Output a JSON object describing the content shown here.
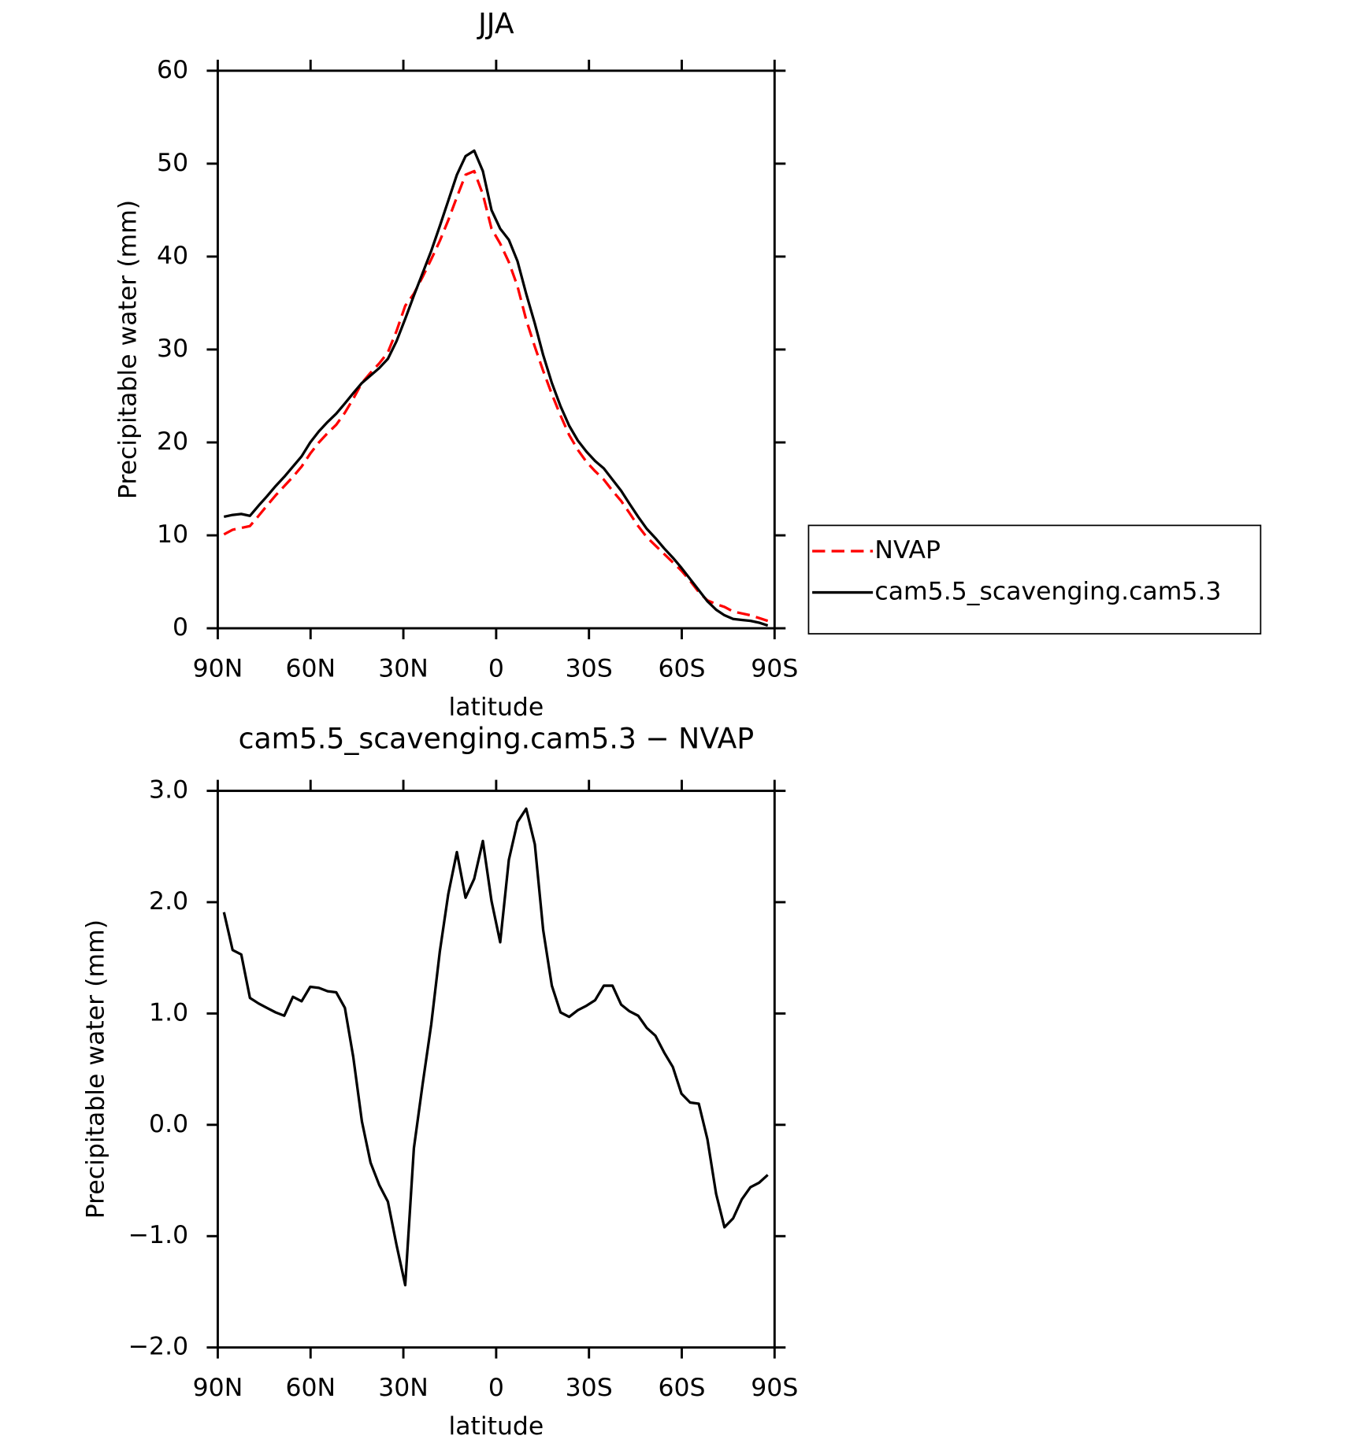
{
  "chart_data": [
    {
      "type": "line",
      "title": "JJA",
      "x_label": "latitude",
      "y_label": "Precipitable water (mm)",
      "x": [
        88.0,
        85.2,
        82.4,
        79.6,
        76.8,
        74.1,
        71.3,
        68.5,
        65.7,
        62.9,
        60.1,
        57.3,
        54.5,
        51.7,
        48.9,
        46.2,
        43.4,
        40.6,
        37.8,
        35.0,
        32.2,
        29.4,
        26.6,
        23.8,
        21.0,
        18.2,
        15.5,
        12.7,
        9.9,
        7.1,
        4.3,
        1.5,
        -1.3,
        -4.1,
        -6.9,
        -9.7,
        -12.5,
        -15.2,
        -18.0,
        -20.8,
        -23.6,
        -26.4,
        -29.2,
        -32.0,
        -34.8,
        -37.6,
        -40.4,
        -43.1,
        -45.9,
        -48.7,
        -51.5,
        -54.3,
        -57.1,
        -59.9,
        -62.7,
        -65.5,
        -68.3,
        -71.1,
        -73.8,
        -76.6,
        -79.4,
        -82.2,
        -85.0,
        -87.8
      ],
      "series": [
        {
          "name": "NVAP",
          "color": "#ff0000",
          "line_style": "dashed",
          "values": [
            10.1,
            10.6,
            10.8,
            11.0,
            12.1,
            13.2,
            14.3,
            15.3,
            16.3,
            17.4,
            18.8,
            20.0,
            21.0,
            21.9,
            23.2,
            24.7,
            26.4,
            27.5,
            28.5,
            29.7,
            32.0,
            34.7,
            36.0,
            37.8,
            39.7,
            41.7,
            43.9,
            46.4,
            48.8,
            49.2,
            46.7,
            43.0,
            41.4,
            39.4,
            36.8,
            33.2,
            30.3,
            27.7,
            25.2,
            22.9,
            20.8,
            19.2,
            17.9,
            16.9,
            16.0,
            14.8,
            13.7,
            12.4,
            11.0,
            9.8,
            8.9,
            8.0,
            7.1,
            6.2,
            5.1,
            3.9,
            3.0,
            2.6,
            2.3,
            1.8,
            1.6,
            1.4,
            1.1,
            0.8
          ]
        },
        {
          "name": "cam5.5_scavenging.cam5.3",
          "color": "#000000",
          "line_style": "solid",
          "values": [
            12.0,
            12.2,
            12.3,
            12.1,
            13.2,
            14.2,
            15.3,
            16.3,
            17.4,
            18.5,
            20.0,
            21.2,
            22.2,
            23.1,
            24.2,
            25.3,
            26.4,
            27.2,
            28.0,
            29.0,
            30.9,
            33.3,
            35.8,
            38.2,
            40.6,
            43.3,
            46.0,
            48.8,
            50.8,
            51.4,
            49.2,
            45.0,
            43.0,
            41.8,
            39.5,
            36.0,
            32.8,
            29.4,
            26.4,
            23.9,
            21.8,
            20.2,
            19.0,
            18.0,
            17.2,
            16.0,
            14.8,
            13.4,
            12.0,
            10.7,
            9.7,
            8.6,
            7.6,
            6.5,
            5.3,
            4.1,
            2.9,
            2.0,
            1.4,
            1.0,
            0.9,
            0.8,
            0.6,
            0.3
          ]
        }
      ],
      "xlim": [
        90,
        -90
      ],
      "xticks": [
        {
          "value": 90,
          "label": "90N"
        },
        {
          "value": 60,
          "label": "60N"
        },
        {
          "value": 30,
          "label": "30N"
        },
        0,
        {
          "value": -30,
          "label": "30S"
        },
        {
          "value": -60,
          "label": "60S"
        },
        {
          "value": -90,
          "label": "90S"
        }
      ],
      "ylim": [
        0,
        60
      ],
      "yticks": [
        0,
        10,
        20,
        30,
        40,
        50,
        60
      ],
      "legend": "outside-right"
    },
    {
      "type": "line",
      "title": "cam5.5_scavenging.cam5.3 − NVAP",
      "x_label": "latitude",
      "y_label": "Precipitable water (mm)",
      "x": [
        88.0,
        85.2,
        82.4,
        79.6,
        76.8,
        74.1,
        71.3,
        68.5,
        65.7,
        62.9,
        60.1,
        57.3,
        54.5,
        51.7,
        48.9,
        46.2,
        43.4,
        40.6,
        37.8,
        35.0,
        32.2,
        29.4,
        26.6,
        23.8,
        21.0,
        18.2,
        15.5,
        12.7,
        9.9,
        7.1,
        4.3,
        1.5,
        -1.3,
        -4.1,
        -6.9,
        -9.7,
        -12.5,
        -15.2,
        -18.0,
        -20.8,
        -23.6,
        -26.4,
        -29.2,
        -32.0,
        -34.8,
        -37.6,
        -40.4,
        -43.1,
        -45.9,
        -48.7,
        -51.5,
        -54.3,
        -57.1,
        -59.9,
        -62.7,
        -65.5,
        -68.3,
        -71.1,
        -73.8,
        -76.6,
        -79.4,
        -82.2,
        -85.0,
        -87.8
      ],
      "values": [
        1.91,
        1.57,
        1.53,
        1.14,
        1.09,
        1.05,
        1.01,
        0.98,
        1.15,
        1.11,
        1.24,
        1.23,
        1.2,
        1.19,
        1.05,
        0.61,
        0.03,
        -0.34,
        -0.54,
        -0.69,
        -1.08,
        -1.44,
        -0.21,
        0.36,
        0.9,
        1.56,
        2.07,
        2.45,
        2.04,
        2.21,
        2.55,
        2.01,
        1.64,
        2.38,
        2.72,
        2.84,
        2.52,
        1.75,
        1.25,
        1.01,
        0.97,
        1.03,
        1.07,
        1.12,
        1.25,
        1.25,
        1.08,
        1.02,
        0.98,
        0.87,
        0.8,
        0.65,
        0.52,
        0.28,
        0.2,
        0.19,
        -0.13,
        -0.62,
        -0.92,
        -0.84,
        -0.67,
        -0.56,
        -0.52,
        -0.45
      ],
      "color": "#000000",
      "xlim": [
        90,
        -90
      ],
      "xticks": [
        {
          "value": 90,
          "label": "90N"
        },
        {
          "value": 60,
          "label": "60N"
        },
        {
          "value": 30,
          "label": "30N"
        },
        0,
        {
          "value": -30,
          "label": "30S"
        },
        {
          "value": -60,
          "label": "60S"
        },
        {
          "value": -90,
          "label": "90S"
        }
      ],
      "ylim": [
        -2,
        3
      ],
      "yticks": [
        {
          "value": -2,
          "label": "−2.0"
        },
        {
          "value": -1,
          "label": "−1.0"
        },
        {
          "value": 0,
          "label": "0.0"
        },
        {
          "value": 1,
          "label": "1.0"
        },
        {
          "value": 2,
          "label": "2.0"
        },
        {
          "value": 3,
          "label": "3.0"
        }
      ]
    }
  ]
}
